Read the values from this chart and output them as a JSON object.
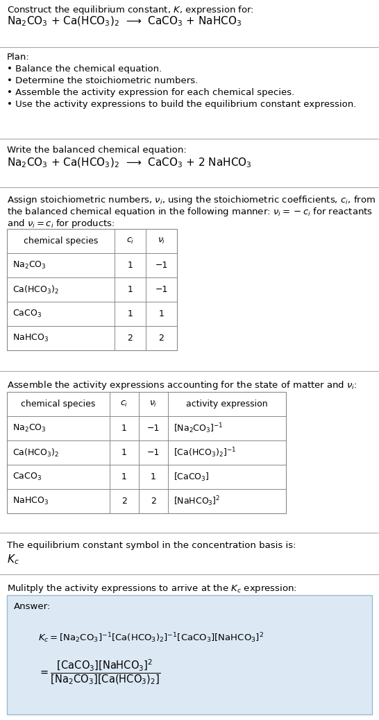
{
  "bg_color": "#ffffff",
  "text_color": "#000000",
  "line_color": "#aaaaaa",
  "title_line1": "Construct the equilibrium constant, $K$, expression for:",
  "title_line2": "Na$_2$CO$_3$ + Ca(HCO$_3$)$_2$  ⟶  CaCO$_3$ + NaHCO$_3$",
  "plan_header": "Plan:",
  "plan_bullets": [
    "• Balance the chemical equation.",
    "• Determine the stoichiometric numbers.",
    "• Assemble the activity expression for each chemical species.",
    "• Use the activity expressions to build the equilibrium constant expression."
  ],
  "balanced_header": "Write the balanced chemical equation:",
  "balanced_eq": "Na$_2$CO$_3$ + Ca(HCO$_3$)$_2$  ⟶  CaCO$_3$ + 2 NaHCO$_3$",
  "stoich_intro1": "Assign stoichiometric numbers, $\\nu_i$, using the stoichiometric coefficients, $c_i$, from",
  "stoich_intro2": "the balanced chemical equation in the following manner: $\\nu_i = -c_i$ for reactants",
  "stoich_intro3": "and $\\nu_i = c_i$ for products:",
  "table1_headers": [
    "chemical species",
    "$c_i$",
    "$\\nu_i$"
  ],
  "table1_rows": [
    [
      "Na$_2$CO$_3$",
      "1",
      "−1"
    ],
    [
      "Ca(HCO$_3$)$_2$",
      "1",
      "−1"
    ],
    [
      "CaCO$_3$",
      "1",
      "1"
    ],
    [
      "NaHCO$_3$",
      "2",
      "2"
    ]
  ],
  "activity_intro": "Assemble the activity expressions accounting for the state of matter and $\\nu_i$:",
  "table2_headers": [
    "chemical species",
    "$c_i$",
    "$\\nu_i$",
    "activity expression"
  ],
  "table2_rows": [
    [
      "Na$_2$CO$_3$",
      "1",
      "−1",
      "[Na$_2$CO$_3$]$^{-1}$"
    ],
    [
      "Ca(HCO$_3$)$_2$",
      "1",
      "−1",
      "[Ca(HCO$_3$)$_2$]$^{-1}$"
    ],
    [
      "CaCO$_3$",
      "1",
      "1",
      "[CaCO$_3$]"
    ],
    [
      "NaHCO$_3$",
      "2",
      "2",
      "[NaHCO$_3$]$^2$"
    ]
  ],
  "kc_header": "The equilibrium constant symbol in the concentration basis is:",
  "kc_symbol": "$K_c$",
  "multiply_intro": "Mulitply the activity expressions to arrive at the $K_c$ expression:",
  "answer_label": "Answer:",
  "answer_bg": "#dce9f5",
  "answer_border": "#9ab8d0",
  "fig_width": 5.46,
  "fig_height": 10.38,
  "dpi": 100
}
